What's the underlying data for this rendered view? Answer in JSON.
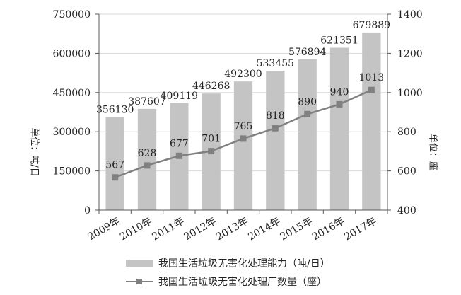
{
  "chart_data": {
    "type": "bar",
    "categories": [
      "2009年",
      "2010年",
      "2011年",
      "2012年",
      "2013年",
      "2014年",
      "2015年",
      "2016年",
      "2017年"
    ],
    "series": [
      {
        "name": "我国生活垃圾无害化处理能力（吨/日）",
        "type": "bar",
        "axis": "left",
        "color": "#c4c4c4",
        "values": [
          356130,
          387607,
          409119,
          446268,
          492300,
          533455,
          576894,
          621351,
          679889
        ]
      },
      {
        "name": "我国生活垃圾无害化处理厂数量（座）",
        "type": "line",
        "axis": "right",
        "color": "#808080",
        "marker": "square",
        "values": [
          567,
          628,
          677,
          701,
          765,
          818,
          890,
          940,
          1013
        ]
      }
    ],
    "y_left": {
      "label": "单位：吨/日",
      "ylim": [
        0,
        750000
      ],
      "ticks": [
        "0",
        "150000",
        "300000",
        "450000",
        "600000",
        "750000"
      ]
    },
    "y_right": {
      "label": "单位：座",
      "ylim": [
        400,
        1400
      ],
      "ticks": [
        "400",
        "600",
        "800",
        "1000",
        "1200",
        "1400"
      ]
    },
    "grid": true,
    "legend_position": "bottom"
  }
}
